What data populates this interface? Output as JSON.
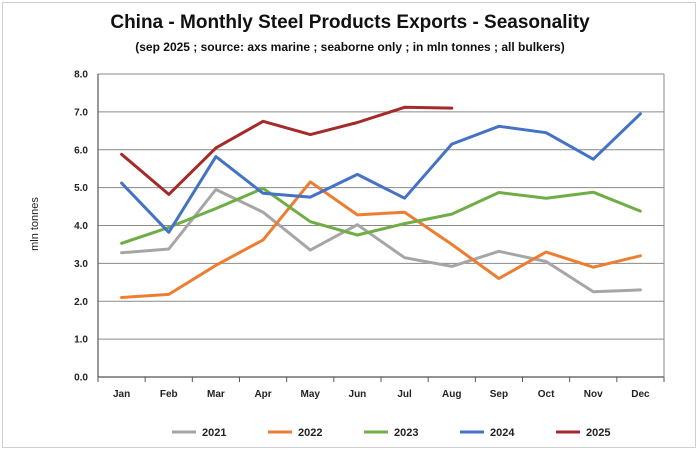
{
  "chart_data": {
    "type": "line",
    "title": "China - Monthly Steel Products Exports - Seasonality",
    "subtitle": "(sep 2025 ; source: axs marine ; seaborne only ; in mln tonnes ; all bulkers)",
    "xlabel": "",
    "ylabel": "mln tonnes",
    "ylim": [
      0,
      8
    ],
    "yticks": [
      "0.0",
      "1.0",
      "2.0",
      "3.0",
      "4.0",
      "5.0",
      "6.0",
      "7.0",
      "8.0"
    ],
    "categories": [
      "Jan",
      "Feb",
      "Mar",
      "Apr",
      "May",
      "Jun",
      "Jul",
      "Aug",
      "Sep",
      "Oct",
      "Nov",
      "Dec"
    ],
    "grid": true,
    "legend": "bottom",
    "series": [
      {
        "name": "2021",
        "color": "#a6a6a6",
        "values": [
          3.28,
          3.38,
          4.95,
          4.35,
          3.35,
          4.02,
          3.15,
          2.92,
          3.32,
          3.05,
          2.25,
          2.3
        ]
      },
      {
        "name": "2022",
        "color": "#ed7d31",
        "values": [
          2.1,
          2.18,
          2.95,
          3.62,
          5.15,
          4.28,
          4.35,
          3.5,
          2.6,
          3.3,
          2.9,
          3.2
        ]
      },
      {
        "name": "2023",
        "color": "#70ad47",
        "values": [
          3.53,
          3.95,
          4.45,
          4.98,
          4.1,
          3.75,
          4.05,
          4.3,
          4.87,
          4.72,
          4.88,
          4.38
        ]
      },
      {
        "name": "2024",
        "color": "#4472c4",
        "values": [
          5.12,
          3.82,
          5.82,
          4.85,
          4.75,
          5.35,
          4.72,
          6.15,
          6.62,
          6.45,
          5.75,
          6.95
        ]
      },
      {
        "name": "2025",
        "color": "#a52a2a",
        "values": [
          5.88,
          4.82,
          6.05,
          6.75,
          6.4,
          6.72,
          7.12,
          7.1,
          null,
          null,
          null,
          null
        ]
      }
    ]
  }
}
